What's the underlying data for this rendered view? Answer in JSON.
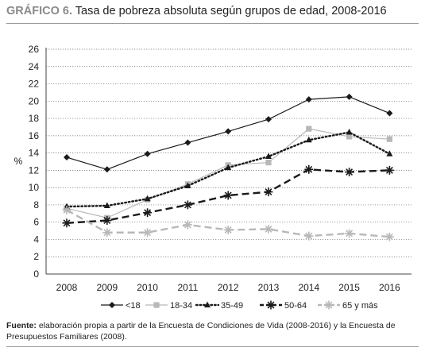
{
  "title": {
    "label": "GRÁFICO 6.",
    "text": "Tasa de pobreza absoluta según grupos de edad, 2008-2016"
  },
  "source": {
    "label": "Fuente:",
    "text": "elaboración propia a partir de la Encuesta de Condiciones de Vida (2008-2016) y la Encuesta de Presupuestos Familiares (2008)."
  },
  "chart_data": {
    "type": "line",
    "ylabel": "%",
    "ylim": [
      0,
      26
    ],
    "yticks": [
      "0",
      "2",
      "4",
      "6",
      "8",
      "10",
      "12",
      "14",
      "16",
      "18",
      "20",
      "22",
      "24",
      "26"
    ],
    "categories": [
      "2008",
      "2009",
      "2010",
      "2011",
      "2012",
      "2013",
      "2014",
      "2015",
      "2016"
    ],
    "grid": true,
    "legend_position": "bottom",
    "series": [
      {
        "name": "<18",
        "color": "#1a1a1a",
        "style": "solid",
        "marker": "diamond",
        "values": [
          13.5,
          12.1,
          13.9,
          15.2,
          16.5,
          17.9,
          20.2,
          20.5,
          18.6
        ]
      },
      {
        "name": "18-34",
        "color": "#b8b8b8",
        "style": "solid",
        "marker": "square",
        "values": [
          7.6,
          6.5,
          8.6,
          10.4,
          12.6,
          12.9,
          16.8,
          15.9,
          15.6
        ]
      },
      {
        "name": "35-49",
        "color": "#1a1a1a",
        "style": "dotted",
        "marker": "triangle",
        "values": [
          7.8,
          7.9,
          8.7,
          10.2,
          12.3,
          13.6,
          15.5,
          16.4,
          13.9
        ]
      },
      {
        "name": "50-64",
        "color": "#1a1a1a",
        "style": "dashed",
        "marker": "asterisk",
        "values": [
          5.9,
          6.2,
          7.1,
          8.0,
          9.1,
          9.5,
          12.1,
          11.8,
          12.0
        ]
      },
      {
        "name": "65 y más",
        "color": "#b8b8b8",
        "style": "dashed",
        "marker": "asterisk",
        "values": [
          7.4,
          4.8,
          4.8,
          5.7,
          5.1,
          5.2,
          4.4,
          4.7,
          4.3
        ]
      }
    ]
  }
}
